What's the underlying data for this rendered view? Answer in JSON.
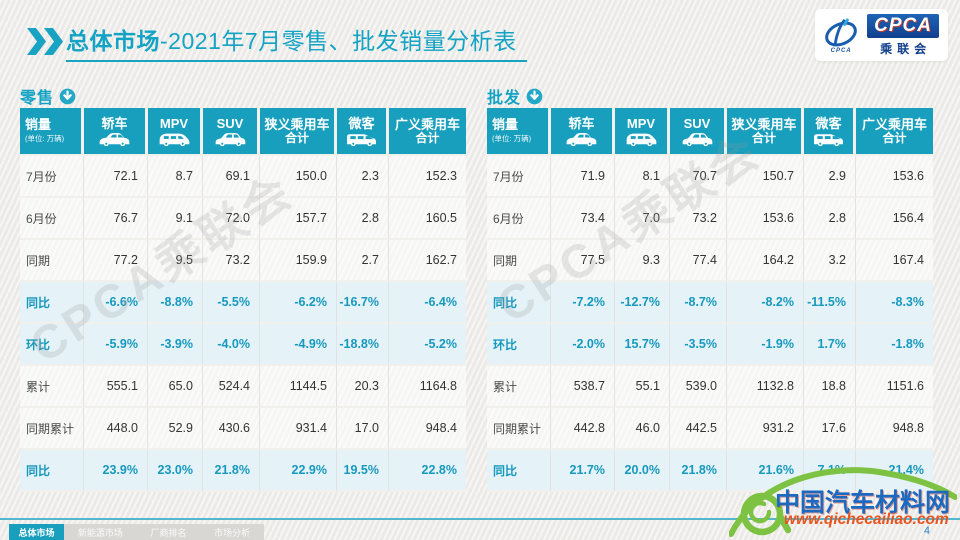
{
  "page": {
    "accent": "#189FBD",
    "highlight_bg": "#E5F2F8"
  },
  "header": {
    "title_bold": "总体市场",
    "title_rest": "-2021年7月零售、批发销量分析表",
    "logo": {
      "emblem_sub": "CPCA",
      "name": "CPCA",
      "subtitle": "乘联会"
    }
  },
  "columns": [
    {
      "label": "销量",
      "sub": "(单位: 万辆)"
    },
    {
      "label": "轿车",
      "icon": "sedan-car-icon"
    },
    {
      "label": "MPV",
      "icon": "mpv-car-icon"
    },
    {
      "label": "SUV",
      "icon": "suv-car-icon"
    },
    {
      "label": "狭义乘用车",
      "label2": "合计"
    },
    {
      "label": "微客",
      "icon": "van-car-icon"
    },
    {
      "label": "广义乘用车",
      "label2": "合计"
    }
  ],
  "tables": [
    {
      "title": "零售",
      "rows": [
        {
          "label": "7月份",
          "type": "normal",
          "values": [
            "72.1",
            "8.7",
            "69.1",
            "150.0",
            "2.3",
            "152.3"
          ]
        },
        {
          "label": "6月份",
          "type": "normal",
          "values": [
            "76.7",
            "9.1",
            "72.0",
            "157.7",
            "2.8",
            "160.5"
          ]
        },
        {
          "label": "同期",
          "type": "normal",
          "values": [
            "77.2",
            "9.5",
            "73.2",
            "159.9",
            "2.7",
            "162.7"
          ]
        },
        {
          "label": "同比",
          "type": "highlight",
          "values": [
            "-6.6%",
            "-8.8%",
            "-5.5%",
            "-6.2%",
            "-16.7%",
            "-6.4%"
          ]
        },
        {
          "label": "环比",
          "type": "highlight",
          "values": [
            "-5.9%",
            "-3.9%",
            "-4.0%",
            "-4.9%",
            "-18.8%",
            "-5.2%"
          ]
        },
        {
          "label": "累计",
          "type": "normal",
          "values": [
            "555.1",
            "65.0",
            "524.4",
            "1144.5",
            "20.3",
            "1164.8"
          ]
        },
        {
          "label": "同期累计",
          "type": "normal",
          "values": [
            "448.0",
            "52.9",
            "430.6",
            "931.4",
            "17.0",
            "948.4"
          ]
        },
        {
          "label": "同比",
          "type": "highlight",
          "values": [
            "23.9%",
            "23.0%",
            "21.8%",
            "22.9%",
            "19.5%",
            "22.8%"
          ]
        }
      ]
    },
    {
      "title": "批发",
      "rows": [
        {
          "label": "7月份",
          "type": "normal",
          "values": [
            "71.9",
            "8.1",
            "70.7",
            "150.7",
            "2.9",
            "153.6"
          ]
        },
        {
          "label": "6月份",
          "type": "normal",
          "values": [
            "73.4",
            "7.0",
            "73.2",
            "153.6",
            "2.8",
            "156.4"
          ]
        },
        {
          "label": "同期",
          "type": "normal",
          "values": [
            "77.5",
            "9.3",
            "77.4",
            "164.2",
            "3.2",
            "167.4"
          ]
        },
        {
          "label": "同比",
          "type": "highlight",
          "values": [
            "-7.2%",
            "-12.7%",
            "-8.7%",
            "-8.2%",
            "-11.5%",
            "-8.3%"
          ]
        },
        {
          "label": "环比",
          "type": "highlight",
          "values": [
            "-2.0%",
            "15.7%",
            "-3.5%",
            "-1.9%",
            "1.7%",
            "-1.8%"
          ]
        },
        {
          "label": "累计",
          "type": "normal",
          "values": [
            "538.7",
            "55.1",
            "539.0",
            "1132.8",
            "18.8",
            "1151.6"
          ]
        },
        {
          "label": "同期累计",
          "type": "normal",
          "values": [
            "442.8",
            "46.0",
            "442.5",
            "931.2",
            "17.6",
            "948.8"
          ]
        },
        {
          "label": "同比",
          "type": "highlight",
          "values": [
            "21.7%",
            "20.0%",
            "21.8%",
            "21.6%",
            "7.1%",
            "21.4%"
          ]
        }
      ]
    }
  ],
  "watermark": {
    "table_text": "CPCA乘联会",
    "site_name": "中国汽车材料网",
    "site_url": "www.qichecailiao.com"
  },
  "footer": {
    "page_number": "4",
    "tabs": [
      {
        "label": "总体市场",
        "active": true
      },
      {
        "label": "新能源市场",
        "active": false
      },
      {
        "label": "厂商排名",
        "active": false
      },
      {
        "label": "市场分析",
        "active": false
      }
    ]
  }
}
